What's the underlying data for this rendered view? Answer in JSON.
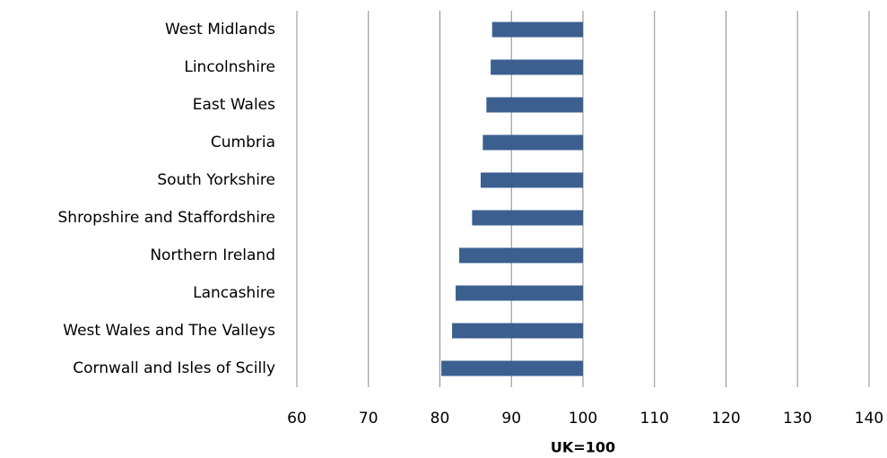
{
  "chart_data": {
    "type": "bar",
    "orientation": "horizontal",
    "categories": [
      "West Midlands",
      "Lincolnshire",
      "East Wales",
      "Cumbria",
      "South Yorkshire",
      "Shropshire and Staffordshire",
      "Northern Ireland",
      "Lancashire",
      "West Wales and The Valleys",
      "Cornwall and Isles of Scilly"
    ],
    "values": [
      87.3,
      87.1,
      86.5,
      86.0,
      85.7,
      84.5,
      82.7,
      82.2,
      81.7,
      80.2
    ],
    "baseline": 100,
    "color": "#3b5f8f",
    "xlabel": "UK=100",
    "xlim": [
      60,
      140
    ],
    "xticks": [
      60,
      70,
      80,
      90,
      100,
      110,
      120,
      130,
      140
    ],
    "grid": true
  }
}
